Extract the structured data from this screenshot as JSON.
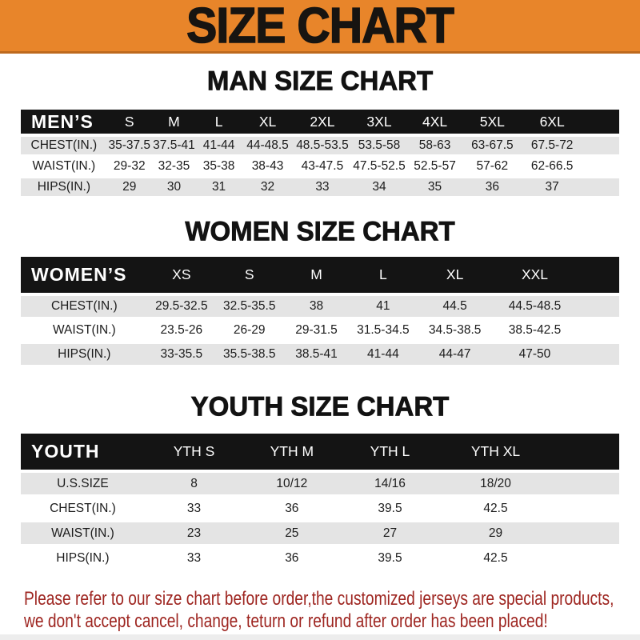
{
  "banner": {
    "title": "SIZE CHART"
  },
  "colors": {
    "banner_bg": "#e8852a",
    "table_header_bg": "#141414",
    "row_stripe": "#e4e4e4",
    "notice_text": "#9e2621"
  },
  "sections": [
    {
      "title": "MAN SIZE CHART",
      "header_label": "MEN’S",
      "columns": [
        "S",
        "M",
        "L",
        "XL",
        "2XL",
        "3XL",
        "4XL",
        "5XL",
        "6XL"
      ],
      "rows": [
        {
          "label": "CHEST(IN.)",
          "values": [
            "35-37.5",
            "37.5-41",
            "41-44",
            "44-48.5",
            "48.5-53.5",
            "53.5-58",
            "58-63",
            "63-67.5",
            "67.5-72"
          ]
        },
        {
          "label": "WAIST(IN.)",
          "values": [
            "29-32",
            "32-35",
            "35-38",
            "38-43",
            "43-47.5",
            "47.5-52.5",
            "52.5-57",
            "57-62",
            "62-66.5"
          ]
        },
        {
          "label": "HIPS(IN.)",
          "values": [
            "29",
            "30",
            "31",
            "32",
            "33",
            "34",
            "35",
            "36",
            "37"
          ]
        }
      ]
    },
    {
      "title": "WOMEN SIZE CHART",
      "header_label": "WOMEN’S",
      "columns": [
        "XS",
        "S",
        "M",
        "L",
        "XL",
        "XXL"
      ],
      "rows": [
        {
          "label": "CHEST(IN.)",
          "values": [
            "29.5-32.5",
            "32.5-35.5",
            "38",
            "41",
            "44.5",
            "44.5-48.5"
          ]
        },
        {
          "label": "WAIST(IN.)",
          "values": [
            "23.5-26",
            "26-29",
            "29-31.5",
            "31.5-34.5",
            "34.5-38.5",
            "38.5-42.5"
          ]
        },
        {
          "label": "HIPS(IN.)",
          "values": [
            "33-35.5",
            "35.5-38.5",
            "38.5-41",
            "41-44",
            "44-47",
            "47-50"
          ]
        }
      ]
    },
    {
      "title": "YOUTH SIZE CHART",
      "header_label": "YOUTH",
      "columns": [
        "YTH S",
        "YTH M",
        "YTH L",
        "YTH XL"
      ],
      "rows": [
        {
          "label": "U.S.SIZE",
          "values": [
            "8",
            "10/12",
            "14/16",
            "18/20"
          ]
        },
        {
          "label": "CHEST(IN.)",
          "values": [
            "33",
            "36",
            "39.5",
            "42.5"
          ]
        },
        {
          "label": "WAIST(IN.)",
          "values": [
            "23",
            "25",
            "27",
            "29"
          ]
        },
        {
          "label": "HIPS(IN.)",
          "values": [
            "33",
            "36",
            "39.5",
            "42.5"
          ]
        }
      ]
    }
  ],
  "footer": {
    "line1": "Please refer to our size chart before order,the customized jerseys are special products,",
    "line2": "we don't accept cancel, change, teturn or refund after order has been placed!"
  }
}
